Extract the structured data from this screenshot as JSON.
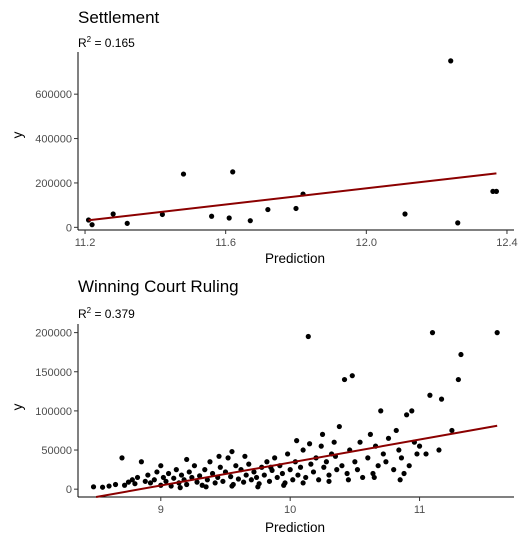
{
  "chart_data": [
    {
      "type": "scatter",
      "title": "Settlement",
      "subtitle": {
        "r2_prefix": "R",
        "r2_sup": "2",
        "r2_text": " = 0.165"
      },
      "xlabel": "Prediction",
      "ylabel": "y",
      "xlim": [
        11.18,
        12.42
      ],
      "ylim": [
        -12000,
        790000
      ],
      "xticks": [
        11.2,
        11.6,
        12.0,
        12.4
      ],
      "xtick_labels": [
        "11.2",
        "11.6",
        "12.0",
        "12.4"
      ],
      "yticks": [
        0,
        200000,
        400000,
        600000
      ],
      "ytick_labels": [
        "0",
        "200000",
        "400000",
        "600000"
      ],
      "grid": false,
      "point_color": "#000000",
      "line_color": "#8b0000",
      "fit_line": {
        "x": [
          11.21,
          12.37
        ],
        "y": [
          32000,
          243000
        ]
      },
      "points": [
        {
          "x": 11.21,
          "y": 33000
        },
        {
          "x": 11.22,
          "y": 12000
        },
        {
          "x": 11.28,
          "y": 60000
        },
        {
          "x": 11.32,
          "y": 18000
        },
        {
          "x": 11.42,
          "y": 58000
        },
        {
          "x": 11.48,
          "y": 240000
        },
        {
          "x": 11.56,
          "y": 50000
        },
        {
          "x": 11.61,
          "y": 42000
        },
        {
          "x": 11.62,
          "y": 250000
        },
        {
          "x": 11.67,
          "y": 30000
        },
        {
          "x": 11.72,
          "y": 80000
        },
        {
          "x": 11.8,
          "y": 85000
        },
        {
          "x": 11.82,
          "y": 150000
        },
        {
          "x": 12.11,
          "y": 60000
        },
        {
          "x": 12.24,
          "y": 750000
        },
        {
          "x": 12.26,
          "y": 20000
        },
        {
          "x": 12.36,
          "y": 162000
        },
        {
          "x": 12.37,
          "y": 162000
        }
      ]
    },
    {
      "type": "scatter",
      "title": "Winning Court Ruling",
      "subtitle": {
        "r2_prefix": "R",
        "r2_sup": "2",
        "r2_text": " = 0.379"
      },
      "xlabel": "Prediction",
      "ylabel": "y",
      "xlim": [
        8.36,
        11.73
      ],
      "ylim": [
        -10000,
        211000
      ],
      "xticks": [
        9,
        10,
        11
      ],
      "xtick_labels": [
        "9",
        "10",
        "11"
      ],
      "yticks": [
        0,
        50000,
        100000,
        150000,
        200000
      ],
      "ytick_labels": [
        "0",
        "50000",
        "100000",
        "150000",
        "200000"
      ],
      "grid": false,
      "point_color": "#000000",
      "line_color": "#8b0000",
      "fit_line": {
        "x": [
          8.5,
          11.6
        ],
        "y": [
          -10000,
          81000
        ]
      },
      "points": [
        {
          "x": 8.48,
          "y": 3000
        },
        {
          "x": 8.55,
          "y": 2500
        },
        {
          "x": 8.6,
          "y": 4000
        },
        {
          "x": 8.65,
          "y": 6000
        },
        {
          "x": 8.7,
          "y": 40000
        },
        {
          "x": 8.72,
          "y": 5000
        },
        {
          "x": 8.75,
          "y": 9000
        },
        {
          "x": 8.78,
          "y": 12000
        },
        {
          "x": 8.8,
          "y": 7000
        },
        {
          "x": 8.82,
          "y": 15000
        },
        {
          "x": 8.85,
          "y": 35000
        },
        {
          "x": 8.88,
          "y": 10000
        },
        {
          "x": 8.9,
          "y": 18000
        },
        {
          "x": 8.92,
          "y": 8000
        },
        {
          "x": 8.95,
          "y": 12000
        },
        {
          "x": 8.97,
          "y": 22000
        },
        {
          "x": 9.0,
          "y": 5000
        },
        {
          "x": 9.02,
          "y": 15000
        },
        {
          "x": 9.04,
          "y": 10000
        },
        {
          "x": 9.06,
          "y": 20000
        },
        {
          "x": 9.08,
          "y": 4000
        },
        {
          "x": 9.1,
          "y": 14000
        },
        {
          "x": 9.12,
          "y": 25000
        },
        {
          "x": 9.14,
          "y": 8000
        },
        {
          "x": 9.16,
          "y": 18000
        },
        {
          "x": 9.18,
          "y": 12000
        },
        {
          "x": 9.2,
          "y": 6000
        },
        {
          "x": 9.22,
          "y": 22000
        },
        {
          "x": 9.24,
          "y": 15000
        },
        {
          "x": 9.26,
          "y": 30000
        },
        {
          "x": 9.28,
          "y": 9000
        },
        {
          "x": 9.3,
          "y": 17000
        },
        {
          "x": 9.32,
          "y": 5000
        },
        {
          "x": 9.34,
          "y": 25000
        },
        {
          "x": 9.36,
          "y": 12000
        },
        {
          "x": 9.38,
          "y": 35000
        },
        {
          "x": 9.4,
          "y": 20000
        },
        {
          "x": 9.42,
          "y": 8000
        },
        {
          "x": 9.44,
          "y": 15000
        },
        {
          "x": 9.46,
          "y": 28000
        },
        {
          "x": 9.48,
          "y": 10000
        },
        {
          "x": 9.5,
          "y": 22000
        },
        {
          "x": 9.52,
          "y": 40000
        },
        {
          "x": 9.54,
          "y": 16000
        },
        {
          "x": 9.56,
          "y": 6000
        },
        {
          "x": 9.58,
          "y": 30000
        },
        {
          "x": 9.6,
          "y": 13000
        },
        {
          "x": 9.62,
          "y": 25000
        },
        {
          "x": 9.64,
          "y": 9000
        },
        {
          "x": 9.66,
          "y": 18000
        },
        {
          "x": 9.68,
          "y": 32000
        },
        {
          "x": 9.7,
          "y": 12000
        },
        {
          "x": 9.72,
          "y": 22000
        },
        {
          "x": 9.74,
          "y": 15000
        },
        {
          "x": 9.76,
          "y": 7000
        },
        {
          "x": 9.78,
          "y": 28000
        },
        {
          "x": 9.8,
          "y": 18000
        },
        {
          "x": 9.82,
          "y": 35000
        },
        {
          "x": 9.84,
          "y": 10000
        },
        {
          "x": 9.86,
          "y": 24000
        },
        {
          "x": 9.88,
          "y": 40000
        },
        {
          "x": 9.9,
          "y": 15000
        },
        {
          "x": 9.92,
          "y": 30000
        },
        {
          "x": 9.94,
          "y": 20000
        },
        {
          "x": 9.96,
          "y": 8000
        },
        {
          "x": 9.98,
          "y": 45000
        },
        {
          "x": 10.0,
          "y": 25000
        },
        {
          "x": 10.02,
          "y": 12000
        },
        {
          "x": 10.04,
          "y": 35000
        },
        {
          "x": 10.06,
          "y": 18000
        },
        {
          "x": 10.08,
          "y": 28000
        },
        {
          "x": 10.1,
          "y": 50000
        },
        {
          "x": 10.12,
          "y": 15000
        },
        {
          "x": 10.14,
          "y": 195000
        },
        {
          "x": 10.16,
          "y": 32000
        },
        {
          "x": 10.18,
          "y": 22000
        },
        {
          "x": 10.2,
          "y": 40000
        },
        {
          "x": 10.22,
          "y": 12000
        },
        {
          "x": 10.24,
          "y": 55000
        },
        {
          "x": 10.26,
          "y": 28000
        },
        {
          "x": 10.28,
          "y": 35000
        },
        {
          "x": 10.3,
          "y": 18000
        },
        {
          "x": 10.32,
          "y": 45000
        },
        {
          "x": 10.34,
          "y": 60000
        },
        {
          "x": 10.36,
          "y": 25000
        },
        {
          "x": 10.38,
          "y": 80000
        },
        {
          "x": 10.4,
          "y": 30000
        },
        {
          "x": 10.42,
          "y": 140000
        },
        {
          "x": 10.44,
          "y": 20000
        },
        {
          "x": 10.46,
          "y": 50000
        },
        {
          "x": 10.48,
          "y": 145000
        },
        {
          "x": 10.5,
          "y": 35000
        },
        {
          "x": 10.52,
          "y": 25000
        },
        {
          "x": 10.54,
          "y": 60000
        },
        {
          "x": 10.56,
          "y": 15000
        },
        {
          "x": 10.6,
          "y": 40000
        },
        {
          "x": 10.62,
          "y": 70000
        },
        {
          "x": 10.64,
          "y": 20000
        },
        {
          "x": 10.66,
          "y": 55000
        },
        {
          "x": 10.68,
          "y": 30000
        },
        {
          "x": 10.7,
          "y": 100000
        },
        {
          "x": 10.72,
          "y": 45000
        },
        {
          "x": 10.74,
          "y": 35000
        },
        {
          "x": 10.76,
          "y": 65000
        },
        {
          "x": 10.8,
          "y": 25000
        },
        {
          "x": 10.82,
          "y": 75000
        },
        {
          "x": 10.84,
          "y": 50000
        },
        {
          "x": 10.86,
          "y": 40000
        },
        {
          "x": 10.88,
          "y": 20000
        },
        {
          "x": 10.9,
          "y": 95000
        },
        {
          "x": 10.92,
          "y": 30000
        },
        {
          "x": 10.94,
          "y": 100000
        },
        {
          "x": 10.96,
          "y": 60000
        },
        {
          "x": 10.98,
          "y": 45000
        },
        {
          "x": 11.0,
          "y": 55000
        },
        {
          "x": 11.05,
          "y": 45000
        },
        {
          "x": 11.08,
          "y": 120000
        },
        {
          "x": 11.1,
          "y": 200000
        },
        {
          "x": 11.15,
          "y": 50000
        },
        {
          "x": 11.17,
          "y": 115000
        },
        {
          "x": 11.25,
          "y": 75000
        },
        {
          "x": 11.3,
          "y": 140000
        },
        {
          "x": 11.32,
          "y": 172000
        },
        {
          "x": 11.6,
          "y": 200000
        },
        {
          "x": 9.0,
          "y": 30000
        },
        {
          "x": 9.2,
          "y": 38000
        },
        {
          "x": 9.45,
          "y": 42000
        },
        {
          "x": 9.55,
          "y": 48000
        },
        {
          "x": 9.65,
          "y": 42000
        },
        {
          "x": 9.85,
          "y": 28000
        },
        {
          "x": 10.05,
          "y": 62000
        },
        {
          "x": 10.15,
          "y": 58000
        },
        {
          "x": 10.25,
          "y": 70000
        },
        {
          "x": 10.35,
          "y": 42000
        },
        {
          "x": 9.15,
          "y": 2000
        },
        {
          "x": 9.35,
          "y": 3000
        },
        {
          "x": 9.55,
          "y": 4000
        },
        {
          "x": 9.75,
          "y": 3000
        },
        {
          "x": 9.95,
          "y": 5000
        },
        {
          "x": 10.1,
          "y": 8000
        },
        {
          "x": 10.3,
          "y": 10000
        },
        {
          "x": 10.45,
          "y": 12000
        },
        {
          "x": 10.65,
          "y": 15000
        },
        {
          "x": 10.85,
          "y": 12000
        }
      ]
    }
  ]
}
